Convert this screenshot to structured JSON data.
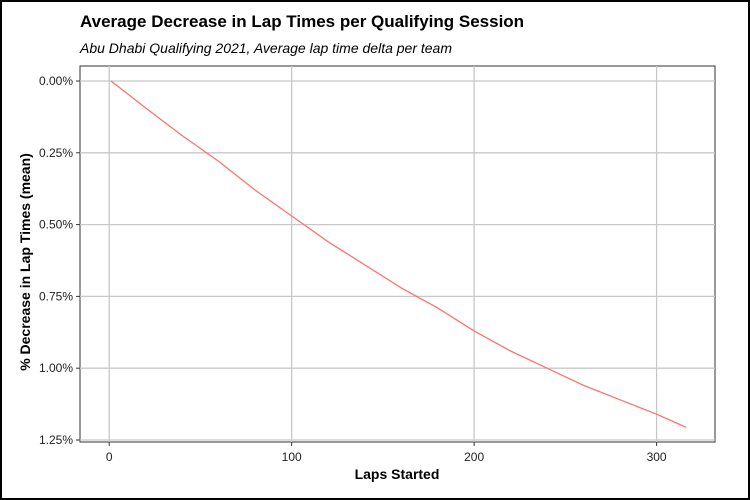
{
  "chart_data": {
    "type": "line",
    "title": "Average Decrease in Lap Times per Qualifying Session",
    "subtitle": "Abu Dhabi Qualifying 2021, Average lap time delta per team",
    "xlabel": "Laps Started",
    "ylabel": "% Decrease in Lap Times (mean)",
    "xlim": [
      -16,
      332
    ],
    "ylim": [
      0,
      1.25
    ],
    "y_reversed": true,
    "x_ticks": [
      0,
      100,
      200,
      300
    ],
    "x_tick_labels": [
      "0",
      "100",
      "200",
      "300"
    ],
    "y_ticks": [
      0,
      0.25,
      0.5,
      0.75,
      1.0,
      1.25
    ],
    "y_tick_labels": [
      "0.00%",
      "0.25%",
      "0.50%",
      "0.75%",
      "1.00%",
      "1.25%"
    ],
    "grid": true,
    "legend": "none",
    "series": [
      {
        "color": "#f8766d",
        "x": [
          1,
          20,
          40,
          60,
          80,
          100,
          120,
          140,
          160,
          180,
          200,
          220,
          240,
          260,
          280,
          300,
          316
        ],
        "y": [
          0.0,
          0.094,
          0.19,
          0.28,
          0.38,
          0.47,
          0.56,
          0.64,
          0.72,
          0.79,
          0.87,
          0.94,
          1.0,
          1.06,
          1.11,
          1.16,
          1.205
        ]
      }
    ]
  }
}
